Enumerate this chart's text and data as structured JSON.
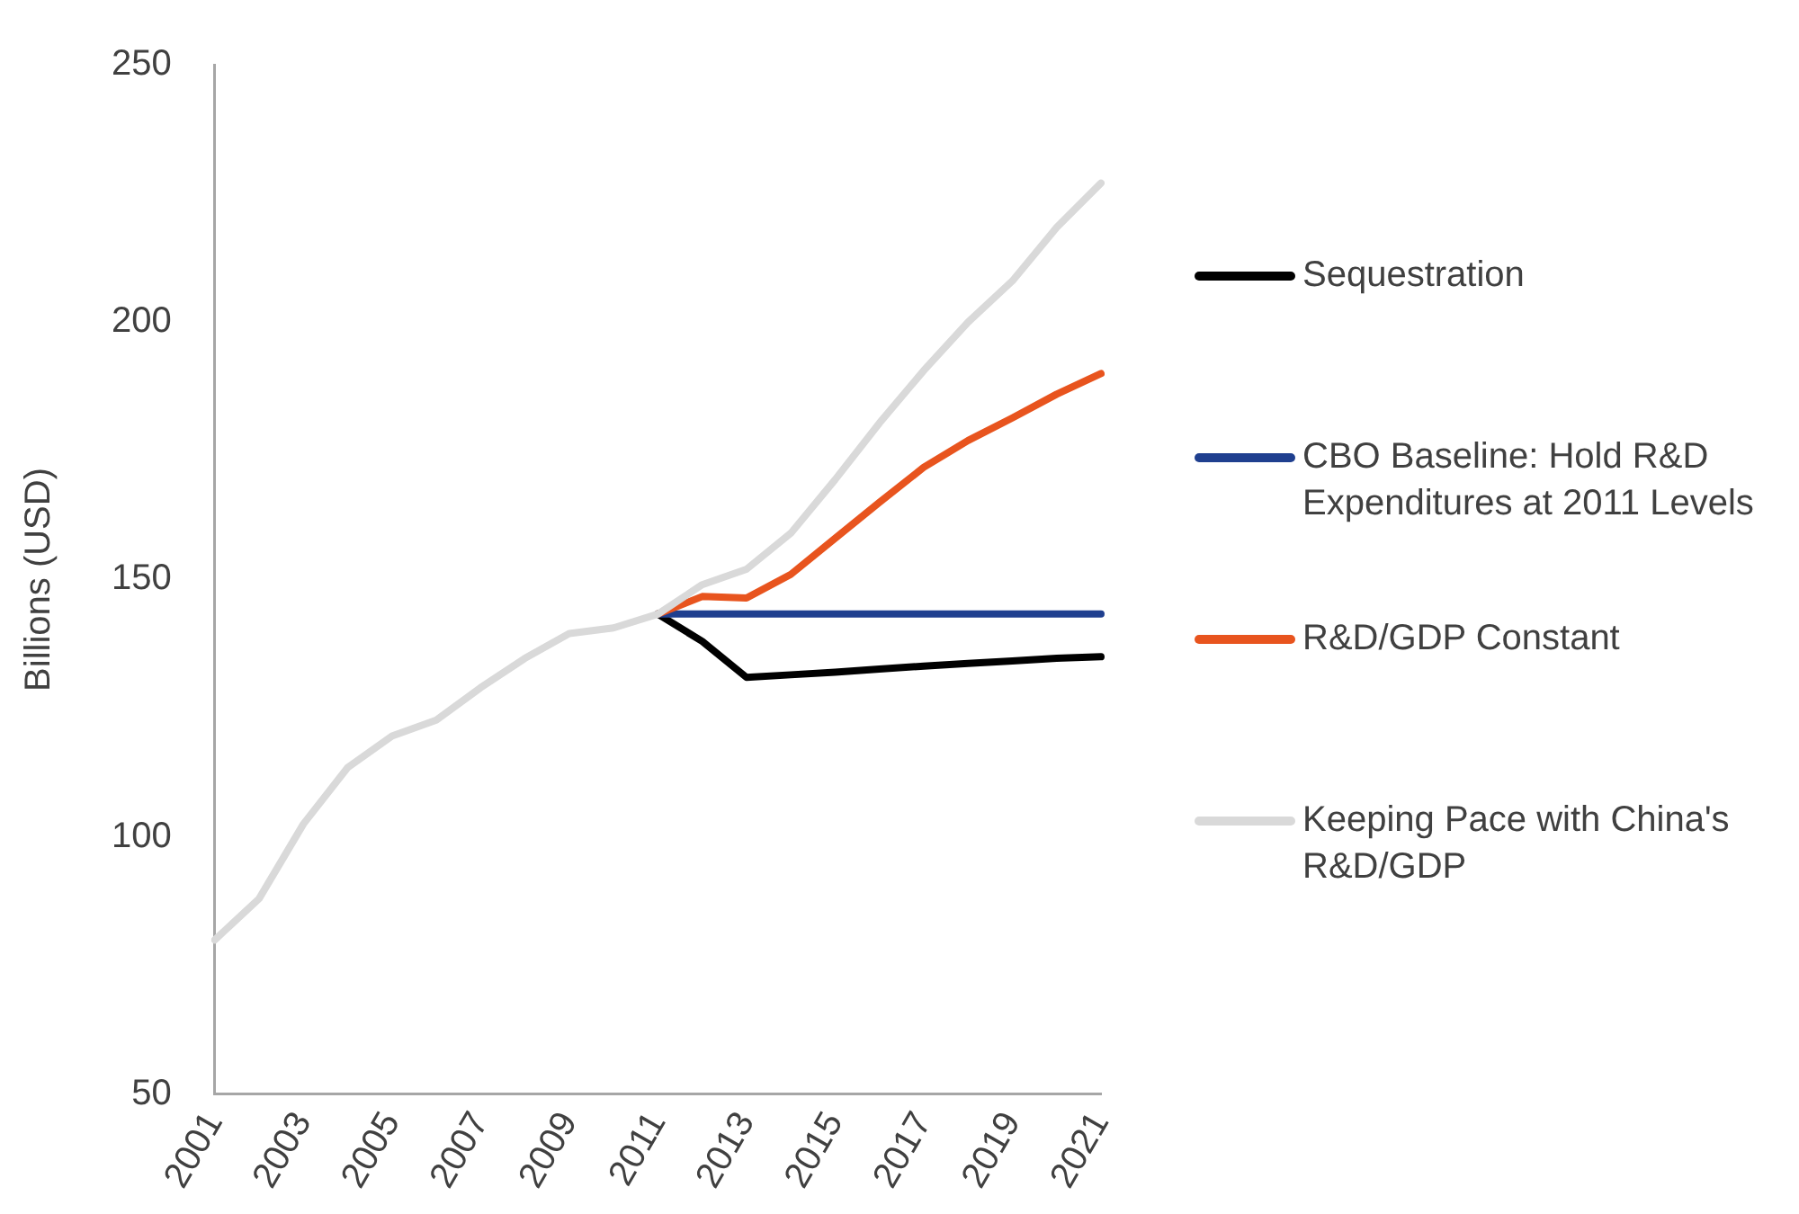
{
  "chart_data": {
    "type": "line",
    "ylabel": "Billions (USD)",
    "categories": [
      "2001",
      null,
      "2003",
      null,
      "2005",
      null,
      "2007",
      null,
      "2009",
      null,
      "2011",
      null,
      "2013",
      null,
      "2015",
      null,
      "2017",
      null,
      "2019",
      null,
      "2021"
    ],
    "ylim": [
      50,
      250
    ],
    "yticks": [
      50,
      100,
      150,
      200,
      250
    ],
    "grid": false,
    "legend": "right",
    "marker": "none",
    "line_style": "solid",
    "series": [
      {
        "name": "Sequestration",
        "color": "#000000",
        "values": [
          null,
          null,
          null,
          null,
          null,
          null,
          null,
          null,
          null,
          null,
          143.3,
          138,
          131,
          131.5,
          132,
          132.6,
          133.2,
          133.7,
          134.2,
          134.7,
          135
        ]
      },
      {
        "name": "CBO Baseline: Hold R&D Expenditures at 2011 Levels",
        "color": "#1f3f8f",
        "values": [
          null,
          null,
          null,
          null,
          null,
          null,
          null,
          null,
          null,
          null,
          143.3,
          143.3,
          143.3,
          143.3,
          143.3,
          143.3,
          143.3,
          143.3,
          143.3,
          143.3,
          143.3
        ]
      },
      {
        "name": "R&D/GDP Constant",
        "color": "#e8541e",
        "values": [
          null,
          null,
          null,
          null,
          null,
          null,
          null,
          null,
          null,
          null,
          143.3,
          146.7,
          146.4,
          151,
          158,
          165,
          171.8,
          177,
          181.4,
          186,
          190
        ]
      },
      {
        "name": "Keeping Pace with China's R&D/GDP",
        "color": "#d9d9d9",
        "values": [
          80,
          88,
          102.5,
          113.5,
          119.6,
          122.7,
          129,
          134.7,
          139.5,
          140.6,
          143.3,
          149,
          152,
          159,
          169.4,
          180.4,
          190.6,
          200,
          208,
          218.4,
          227
        ]
      }
    ]
  }
}
